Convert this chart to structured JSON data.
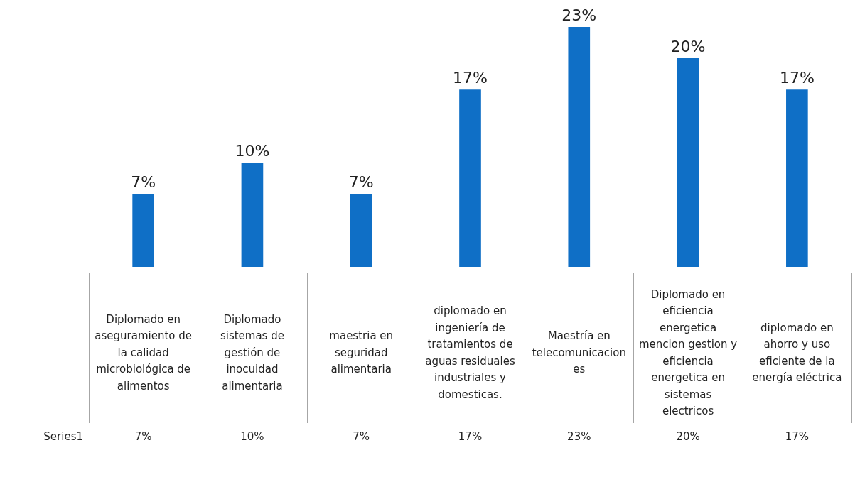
{
  "chart_data": {
    "type": "bar",
    "categories": [
      "Diplomado en aseguramiento de la calidad microbiológica de alimentos",
      "Diplomado sistemas de gestión de inocuidad alimentaria",
      "maestria en seguridad alimentaria",
      "diplomado en ingeniería de tratamientos de aguas residuales industriales y domesticas.",
      "Maestría en telecomunicaciones",
      "Diplomado en eficiencia energetica mencion gestion y eficiencia energetica en sistemas electricos",
      "diplomado en ahorro y uso eficiente de la energía eléctrica"
    ],
    "series": [
      {
        "name": "Series1",
        "color": "#0f6fc6",
        "values": [
          7,
          10,
          7,
          17,
          23,
          20,
          17
        ],
        "value_labels": [
          "7%",
          "10%",
          "7%",
          "17%",
          "23%",
          "20%",
          "17%"
        ]
      }
    ],
    "grid": false,
    "legend": false
  }
}
